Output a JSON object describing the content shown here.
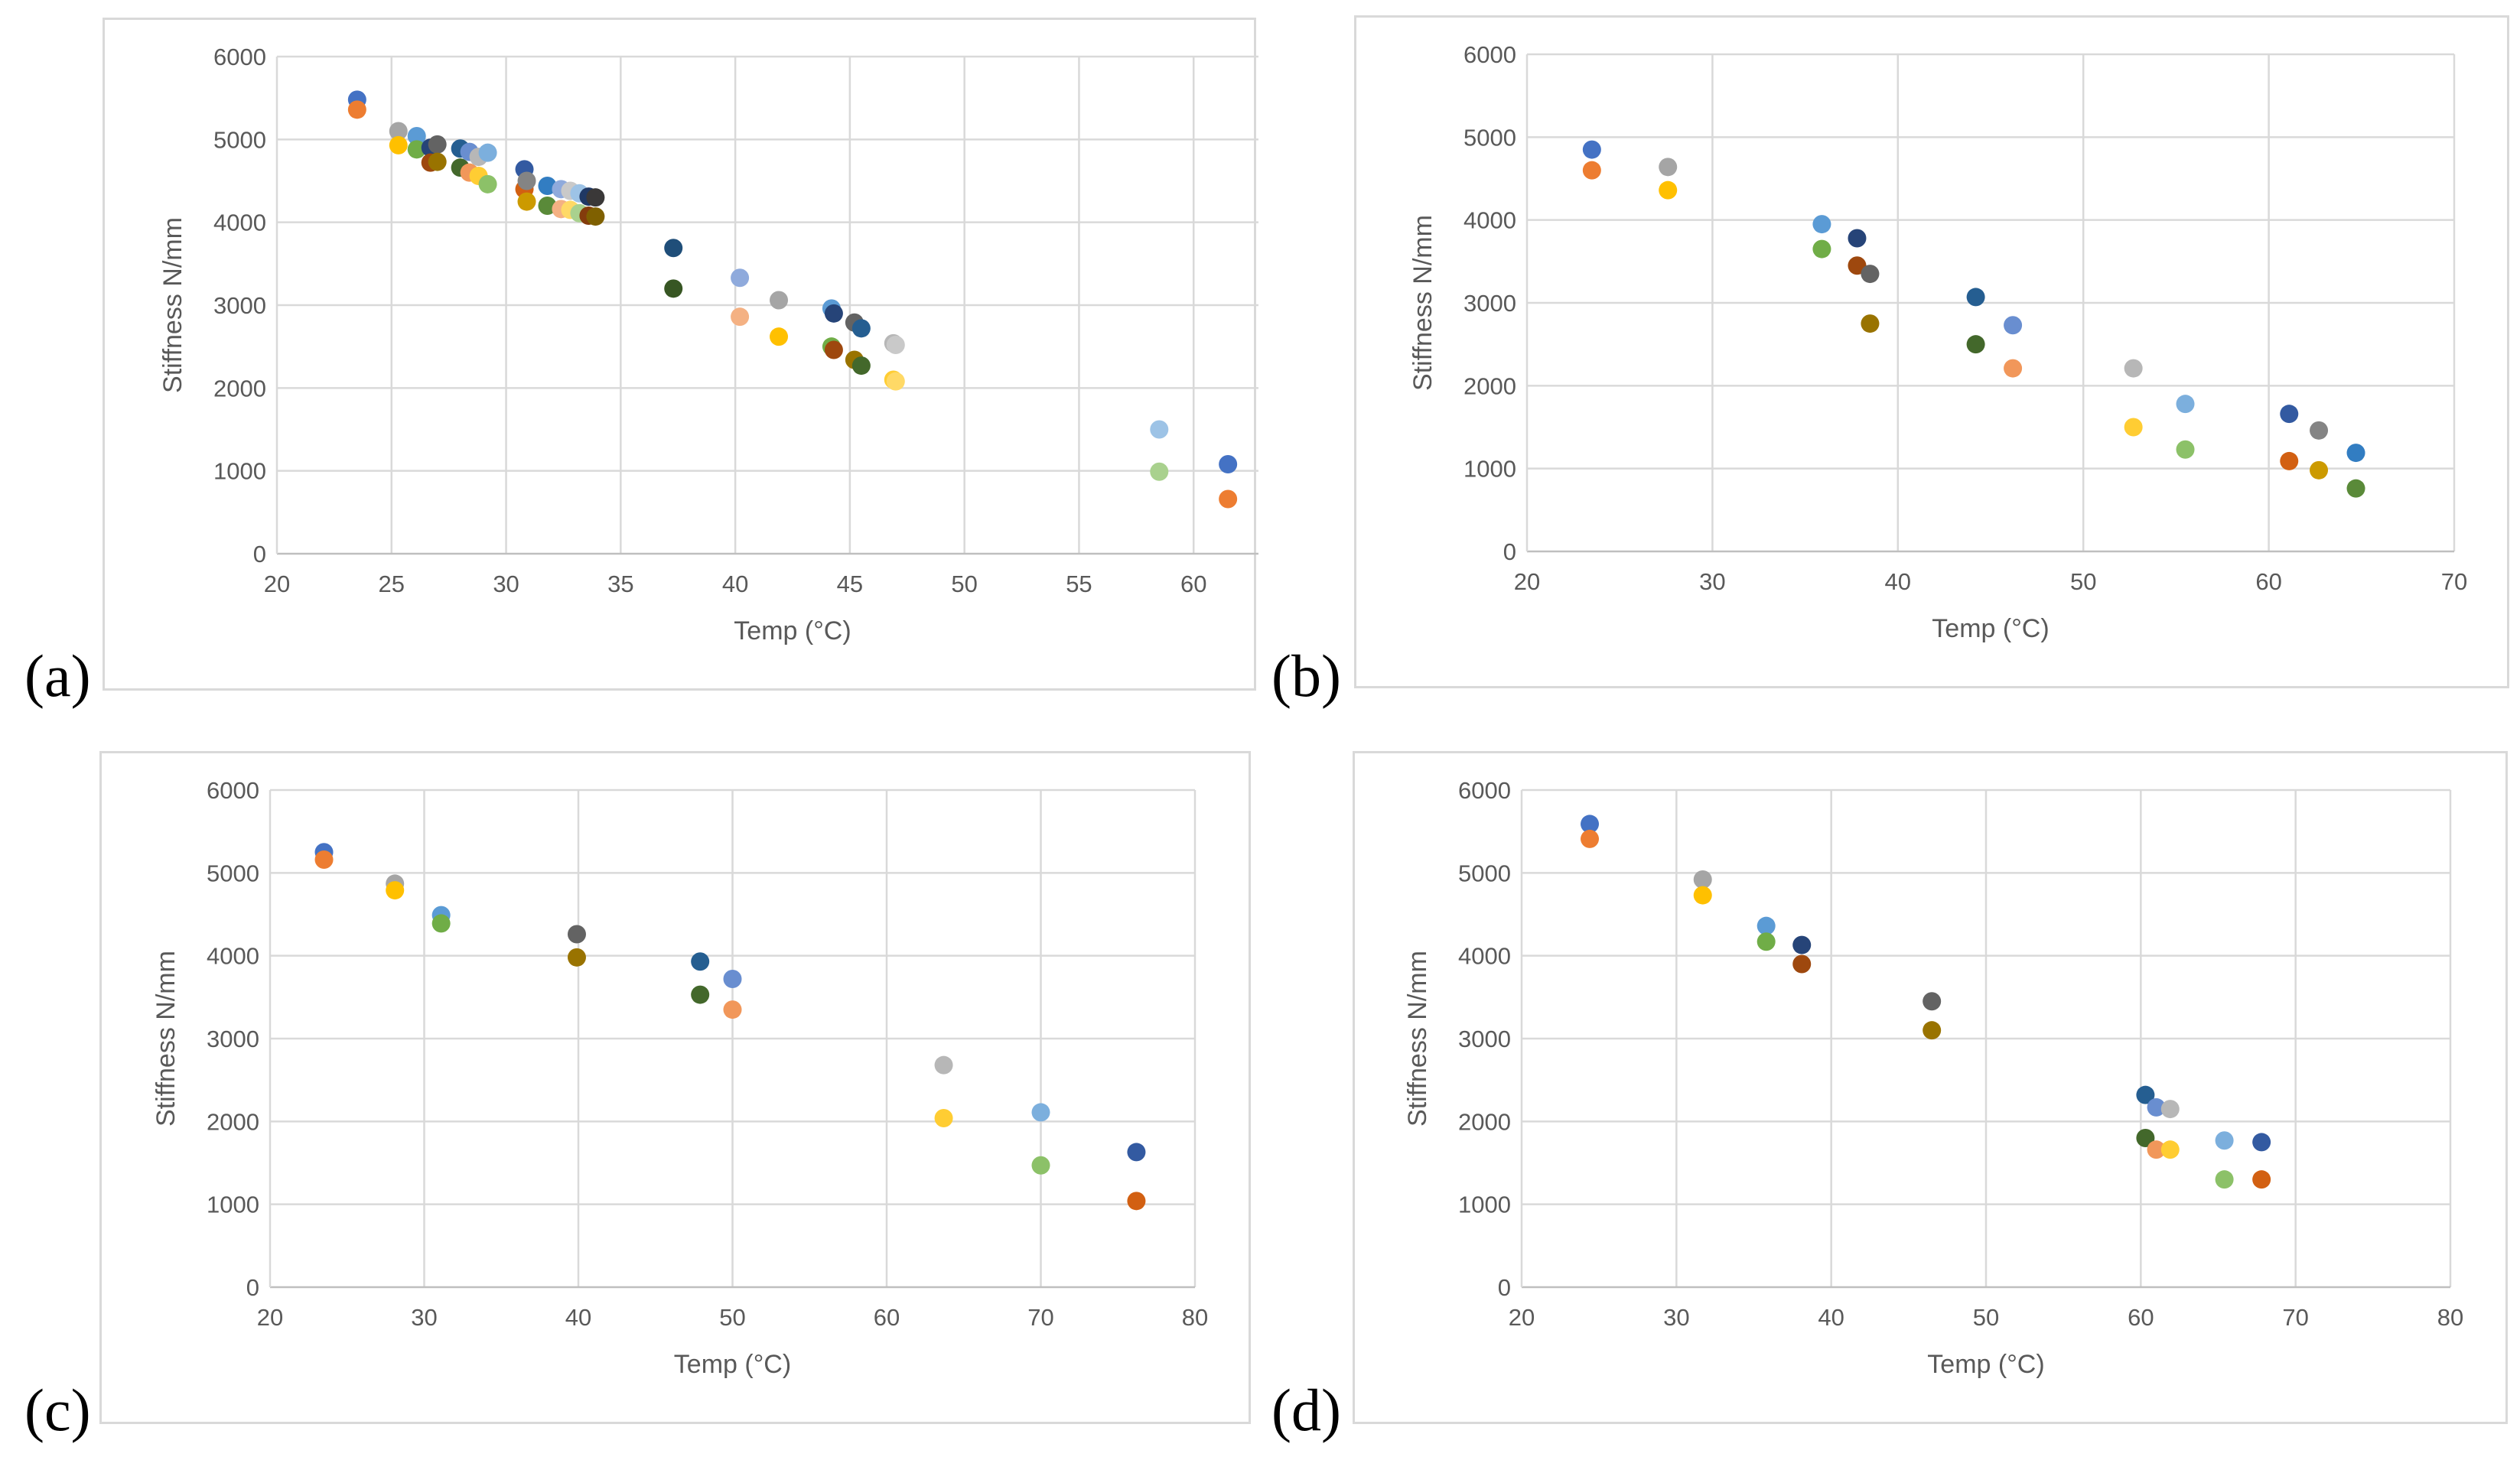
{
  "panels": [
    {
      "label": "(a)",
      "chart_data": {
        "type": "scatter",
        "title": "",
        "xlabel": "Temp (°C)",
        "ylabel": "Stiffness N/mm",
        "xlim": [
          20,
          65
        ],
        "ylim": [
          0,
          6000
        ],
        "xticks": [
          20,
          25,
          30,
          35,
          40,
          45,
          50,
          55,
          60,
          65
        ],
        "yticks": [
          0,
          1000,
          2000,
          3000,
          4000,
          5000,
          6000
        ],
        "grid": true,
        "legend": "none",
        "points": [
          {
            "x": 23.5,
            "y": 5480,
            "color": "#4472c4"
          },
          {
            "x": 23.5,
            "y": 5360,
            "color": "#ed7d31"
          },
          {
            "x": 25.3,
            "y": 5100,
            "color": "#a5a5a5"
          },
          {
            "x": 25.3,
            "y": 4930,
            "color": "#ffc000"
          },
          {
            "x": 26.1,
            "y": 5040,
            "color": "#5b9bd5"
          },
          {
            "x": 26.1,
            "y": 4880,
            "color": "#70ad47"
          },
          {
            "x": 26.7,
            "y": 4900,
            "color": "#264478"
          },
          {
            "x": 26.7,
            "y": 4720,
            "color": "#9e480e"
          },
          {
            "x": 27.0,
            "y": 4940,
            "color": "#636363"
          },
          {
            "x": 27.0,
            "y": 4730,
            "color": "#997300"
          },
          {
            "x": 28.0,
            "y": 4890,
            "color": "#255e91"
          },
          {
            "x": 28.0,
            "y": 4660,
            "color": "#43682b"
          },
          {
            "x": 28.4,
            "y": 4850,
            "color": "#698ed0"
          },
          {
            "x": 28.4,
            "y": 4600,
            "color": "#f1975a"
          },
          {
            "x": 28.8,
            "y": 4790,
            "color": "#b7b7b7"
          },
          {
            "x": 28.8,
            "y": 4560,
            "color": "#ffcd33"
          },
          {
            "x": 29.2,
            "y": 4840,
            "color": "#7cafdd"
          },
          {
            "x": 29.2,
            "y": 4460,
            "color": "#8cc168"
          },
          {
            "x": 30.8,
            "y": 4640,
            "color": "#335aa1"
          },
          {
            "x": 30.8,
            "y": 4400,
            "color": "#d26012"
          },
          {
            "x": 30.9,
            "y": 4500,
            "color": "#848484"
          },
          {
            "x": 30.9,
            "y": 4250,
            "color": "#cc9a00"
          },
          {
            "x": 31.8,
            "y": 4440,
            "color": "#327dc2"
          },
          {
            "x": 31.8,
            "y": 4200,
            "color": "#5a8a39"
          },
          {
            "x": 32.4,
            "y": 4400,
            "color": "#8faadc"
          },
          {
            "x": 32.4,
            "y": 4160,
            "color": "#f4b183"
          },
          {
            "x": 32.8,
            "y": 4380,
            "color": "#c9c9c9"
          },
          {
            "x": 32.8,
            "y": 4150,
            "color": "#ffd966"
          },
          {
            "x": 33.2,
            "y": 4350,
            "color": "#9dc3e6"
          },
          {
            "x": 33.2,
            "y": 4110,
            "color": "#a9d18e"
          },
          {
            "x": 33.6,
            "y": 4310,
            "color": "#1f3864"
          },
          {
            "x": 33.6,
            "y": 4080,
            "color": "#843c0c"
          },
          {
            "x": 33.9,
            "y": 4300,
            "color": "#3a3838"
          },
          {
            "x": 33.9,
            "y": 4070,
            "color": "#7f6000"
          },
          {
            "x": 37.3,
            "y": 3690,
            "color": "#1f4e79"
          },
          {
            "x": 37.3,
            "y": 3200,
            "color": "#375623"
          },
          {
            "x": 40.2,
            "y": 3330,
            "color": "#8faadc"
          },
          {
            "x": 40.2,
            "y": 2860,
            "color": "#f4b183"
          },
          {
            "x": 41.9,
            "y": 3060,
            "color": "#a5a5a5"
          },
          {
            "x": 41.9,
            "y": 2620,
            "color": "#ffc000"
          },
          {
            "x": 44.2,
            "y": 2960,
            "color": "#5b9bd5"
          },
          {
            "x": 44.2,
            "y": 2500,
            "color": "#70ad47"
          },
          {
            "x": 44.3,
            "y": 2900,
            "color": "#264478"
          },
          {
            "x": 44.3,
            "y": 2460,
            "color": "#9e480e"
          },
          {
            "x": 45.2,
            "y": 2790,
            "color": "#636363"
          },
          {
            "x": 45.2,
            "y": 2340,
            "color": "#997300"
          },
          {
            "x": 45.5,
            "y": 2720,
            "color": "#255e91"
          },
          {
            "x": 45.5,
            "y": 2270,
            "color": "#43682b"
          },
          {
            "x": 46.9,
            "y": 2540,
            "color": "#b7b7b7"
          },
          {
            "x": 46.9,
            "y": 2100,
            "color": "#ffcd33"
          },
          {
            "x": 47.0,
            "y": 2520,
            "color": "#c9c9c9"
          },
          {
            "x": 47.0,
            "y": 2080,
            "color": "#ffd966"
          },
          {
            "x": 58.5,
            "y": 1500,
            "color": "#9dc3e6"
          },
          {
            "x": 58.5,
            "y": 990,
            "color": "#a9d18e"
          },
          {
            "x": 61.5,
            "y": 1080,
            "color": "#4472c4"
          },
          {
            "x": 61.5,
            "y": 660,
            "color": "#ed7d31"
          }
        ]
      }
    },
    {
      "label": "(b)",
      "chart_data": {
        "type": "scatter",
        "title": "",
        "xlabel": "Temp (°C)",
        "ylabel": "Stiffness N/mm",
        "xlim": [
          20,
          70
        ],
        "ylim": [
          0,
          6000
        ],
        "xticks": [
          20,
          30,
          40,
          50,
          60,
          70
        ],
        "yticks": [
          0,
          1000,
          2000,
          3000,
          4000,
          5000,
          6000
        ],
        "grid": true,
        "legend": "none",
        "points": [
          {
            "x": 23.5,
            "y": 4850,
            "color": "#4472c4"
          },
          {
            "x": 23.5,
            "y": 4600,
            "color": "#ed7d31"
          },
          {
            "x": 27.6,
            "y": 4640,
            "color": "#a5a5a5"
          },
          {
            "x": 27.6,
            "y": 4360,
            "color": "#ffc000"
          },
          {
            "x": 35.9,
            "y": 3950,
            "color": "#5b9bd5"
          },
          {
            "x": 35.9,
            "y": 3650,
            "color": "#70ad47"
          },
          {
            "x": 37.8,
            "y": 3780,
            "color": "#264478"
          },
          {
            "x": 37.8,
            "y": 3450,
            "color": "#9e480e"
          },
          {
            "x": 38.5,
            "y": 3350,
            "color": "#636363"
          },
          {
            "x": 38.5,
            "y": 2750,
            "color": "#997300"
          },
          {
            "x": 44.2,
            "y": 3070,
            "color": "#255e91"
          },
          {
            "x": 44.2,
            "y": 2500,
            "color": "#43682b"
          },
          {
            "x": 46.2,
            "y": 2730,
            "color": "#698ed0"
          },
          {
            "x": 46.2,
            "y": 2210,
            "color": "#f1975a"
          },
          {
            "x": 52.7,
            "y": 2210,
            "color": "#b7b7b7"
          },
          {
            "x": 52.7,
            "y": 1500,
            "color": "#ffcd33"
          },
          {
            "x": 55.5,
            "y": 1780,
            "color": "#7cafdd"
          },
          {
            "x": 55.5,
            "y": 1230,
            "color": "#8cc168"
          },
          {
            "x": 61.1,
            "y": 1660,
            "color": "#335aa1"
          },
          {
            "x": 61.1,
            "y": 1090,
            "color": "#d26012"
          },
          {
            "x": 62.7,
            "y": 1460,
            "color": "#848484"
          },
          {
            "x": 62.7,
            "y": 980,
            "color": "#cc9a00"
          },
          {
            "x": 64.7,
            "y": 1190,
            "color": "#327dc2"
          },
          {
            "x": 64.7,
            "y": 760,
            "color": "#5a8a39"
          }
        ]
      }
    },
    {
      "label": "(c)",
      "chart_data": {
        "type": "scatter",
        "title": "",
        "xlabel": "Temp (°C)",
        "ylabel": "Stiffness N/mm",
        "xlim": [
          20,
          80
        ],
        "ylim": [
          0,
          6000
        ],
        "xticks": [
          20,
          30,
          40,
          50,
          60,
          70,
          80
        ],
        "yticks": [
          0,
          1000,
          2000,
          3000,
          4000,
          5000,
          6000
        ],
        "grid": true,
        "legend": "none",
        "points": [
          {
            "x": 23.5,
            "y": 5250,
            "color": "#4472c4"
          },
          {
            "x": 23.5,
            "y": 5160,
            "color": "#ed7d31"
          },
          {
            "x": 28.1,
            "y": 4870,
            "color": "#a5a5a5"
          },
          {
            "x": 28.1,
            "y": 4790,
            "color": "#ffc000"
          },
          {
            "x": 31.1,
            "y": 4490,
            "color": "#5b9bd5"
          },
          {
            "x": 31.1,
            "y": 4390,
            "color": "#70ad47"
          },
          {
            "x": 39.9,
            "y": 4260,
            "color": "#636363"
          },
          {
            "x": 39.9,
            "y": 3980,
            "color": "#997300"
          },
          {
            "x": 47.9,
            "y": 3930,
            "color": "#255e91"
          },
          {
            "x": 47.9,
            "y": 3530,
            "color": "#43682b"
          },
          {
            "x": 50.0,
            "y": 3720,
            "color": "#698ed0"
          },
          {
            "x": 50.0,
            "y": 3350,
            "color": "#f1975a"
          },
          {
            "x": 63.7,
            "y": 2680,
            "color": "#b7b7b7"
          },
          {
            "x": 63.7,
            "y": 2040,
            "color": "#ffcd33"
          },
          {
            "x": 70.0,
            "y": 2110,
            "color": "#7cafdd"
          },
          {
            "x": 70.0,
            "y": 1470,
            "color": "#8cc168"
          },
          {
            "x": 76.2,
            "y": 1630,
            "color": "#335aa1"
          },
          {
            "x": 76.2,
            "y": 1040,
            "color": "#d26012"
          }
        ]
      }
    },
    {
      "label": "(d)",
      "chart_data": {
        "type": "scatter",
        "title": "",
        "xlabel": "Temp (°C)",
        "ylabel": "Stiffness N/mm",
        "xlim": [
          20,
          80
        ],
        "ylim": [
          0,
          6000
        ],
        "xticks": [
          20,
          30,
          40,
          50,
          60,
          70,
          80
        ],
        "yticks": [
          0,
          1000,
          2000,
          3000,
          4000,
          5000,
          6000
        ],
        "grid": true,
        "legend": "none",
        "points": [
          {
            "x": 24.4,
            "y": 5590,
            "color": "#4472c4"
          },
          {
            "x": 24.4,
            "y": 5410,
            "color": "#ed7d31"
          },
          {
            "x": 31.7,
            "y": 4920,
            "color": "#a5a5a5"
          },
          {
            "x": 31.7,
            "y": 4730,
            "color": "#ffc000"
          },
          {
            "x": 35.8,
            "y": 4360,
            "color": "#5b9bd5"
          },
          {
            "x": 35.8,
            "y": 4170,
            "color": "#70ad47"
          },
          {
            "x": 38.1,
            "y": 4130,
            "color": "#264478"
          },
          {
            "x": 38.1,
            "y": 3900,
            "color": "#9e480e"
          },
          {
            "x": 46.5,
            "y": 3450,
            "color": "#636363"
          },
          {
            "x": 46.5,
            "y": 3100,
            "color": "#997300"
          },
          {
            "x": 60.3,
            "y": 2320,
            "color": "#255e91"
          },
          {
            "x": 60.3,
            "y": 1800,
            "color": "#43682b"
          },
          {
            "x": 61.0,
            "y": 2170,
            "color": "#698ed0"
          },
          {
            "x": 61.0,
            "y": 1660,
            "color": "#f1975a"
          },
          {
            "x": 61.9,
            "y": 2150,
            "color": "#b7b7b7"
          },
          {
            "x": 61.9,
            "y": 1660,
            "color": "#ffcd33"
          },
          {
            "x": 65.4,
            "y": 1770,
            "color": "#7cafdd"
          },
          {
            "x": 65.4,
            "y": 1300,
            "color": "#8cc168"
          },
          {
            "x": 67.8,
            "y": 1750,
            "color": "#335aa1"
          },
          {
            "x": 67.8,
            "y": 1300,
            "color": "#d26012"
          }
        ]
      }
    }
  ]
}
